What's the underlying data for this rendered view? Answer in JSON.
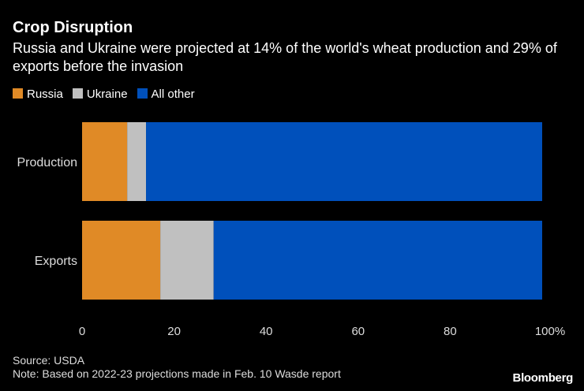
{
  "chart_data": {
    "type": "bar",
    "orientation": "horizontal",
    "stacked": true,
    "title": "Crop Disruption",
    "subtitle": "Russia and Ukraine were projected at 14% of the world's wheat production and 29% of exports before the invasion",
    "categories": [
      "Production",
      "Exports"
    ],
    "series": [
      {
        "name": "Russia",
        "color": "#e08a26",
        "values": [
          9.8,
          17.0
        ]
      },
      {
        "name": "Ukraine",
        "color": "#c0c0c0",
        "values": [
          4.1,
          11.6
        ]
      },
      {
        "name": "All other",
        "color": "#0050bb",
        "values": [
          86.1,
          71.4
        ]
      }
    ],
    "xlim": [
      0,
      100
    ],
    "xticks": [
      "0",
      "20",
      "40",
      "60",
      "80",
      "100%"
    ],
    "legend_position": "top-left",
    "grid": false
  },
  "footer": {
    "source": "Source: USDA",
    "note": "Note: Based on 2022-23 projections made in Feb. 10 Wasde report"
  },
  "logo": "Bloomberg"
}
